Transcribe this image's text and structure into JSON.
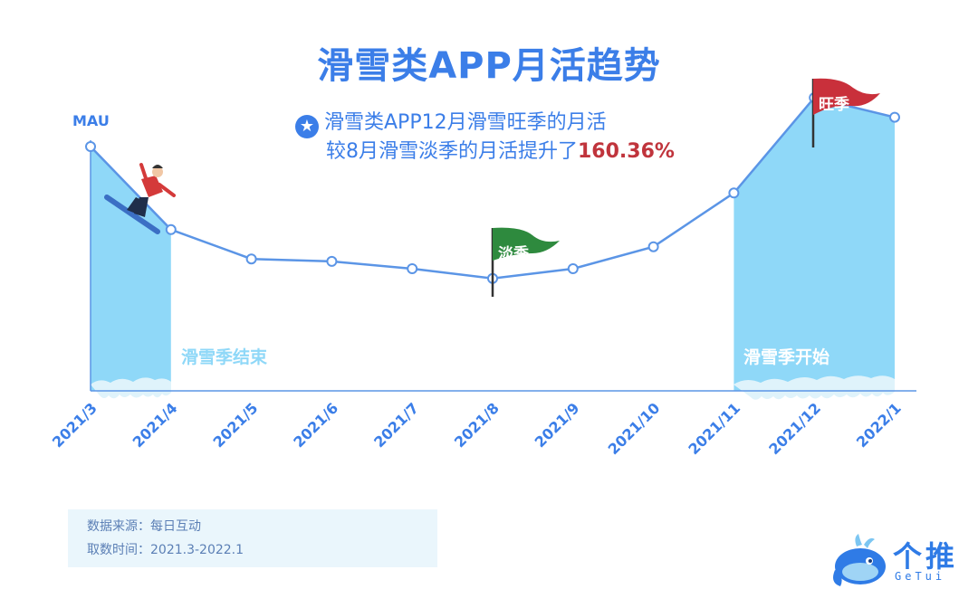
{
  "title": "滑雪类APP月活趋势",
  "callout": {
    "line1": "滑雪类APP12月滑雪旺季的月活",
    "line2_prefix": "较8月滑雪淡季的月活提升了",
    "highlight": "160.36%"
  },
  "labels": {
    "season_end": "滑雪季结束",
    "season_start": "滑雪季开始",
    "low_season_flag": "淡季",
    "peak_season_flag": "旺季"
  },
  "source": {
    "line1": "数据来源：每日互动",
    "line2": "取数时间：2021.3-2022.1"
  },
  "logo": {
    "cn": "个推",
    "en": "GeTui"
  },
  "colors": {
    "line": "#5b95e6",
    "area": "#8fd8f8",
    "title": "#3b7ee8",
    "highlight": "#c0343c",
    "flag_green": "#2e8a3e",
    "flag_red": "#c9303b"
  },
  "chart_data": {
    "type": "line",
    "ylabel": "MAU",
    "x": [
      "2021/3",
      "2021/4",
      "2021/5",
      "2021/6",
      "2021/7",
      "2021/8",
      "2021/9",
      "2021/10",
      "2021/11",
      "2021/12",
      "2022/1"
    ],
    "values": [
      100,
      66,
      54,
      53,
      50,
      46,
      50,
      59,
      81,
      120,
      112
    ],
    "ylim": [
      0,
      140
    ],
    "grid": false,
    "shaded_ranges": [
      [
        "2021/3",
        "2021/4"
      ],
      [
        "2021/11",
        "2022/1"
      ]
    ]
  }
}
